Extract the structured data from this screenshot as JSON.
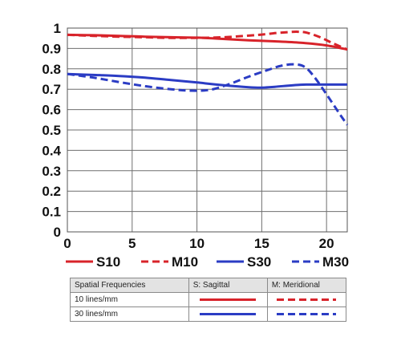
{
  "chart_data": {
    "type": "line",
    "title": "",
    "xlabel": "",
    "ylabel": "",
    "xlim": [
      0,
      21.6
    ],
    "ylim": [
      0,
      1
    ],
    "xticks": [
      0,
      5,
      10,
      15,
      20
    ],
    "yticks": [
      {
        "value": 0,
        "label": "0"
      },
      {
        "value": 0.1,
        "label": "0.1"
      },
      {
        "value": 0.2,
        "label": "0.2"
      },
      {
        "value": 0.3,
        "label": "0.3"
      },
      {
        "value": 0.4,
        "label": "0.4"
      },
      {
        "value": 0.5,
        "label": "0.5"
      },
      {
        "value": 0.6,
        "label": "0.6"
      },
      {
        "value": 0.7,
        "label": "0.7"
      },
      {
        "value": 0.8,
        "label": "0.8"
      },
      {
        "value": 0.9,
        "label": "0.9"
      },
      {
        "value": 1,
        "label": "1"
      }
    ],
    "grid": true,
    "series": [
      {
        "name": "S10",
        "color": "#d8232a",
        "dash": false,
        "x": [
          0,
          2,
          4,
          6,
          8,
          10,
          12,
          14,
          16,
          18,
          20,
          21.6
        ],
        "y": [
          0.967,
          0.965,
          0.962,
          0.958,
          0.955,
          0.953,
          0.947,
          0.94,
          0.935,
          0.928,
          0.915,
          0.895
        ]
      },
      {
        "name": "M10",
        "color": "#d8232a",
        "dash": true,
        "x": [
          0,
          2,
          4,
          6,
          8,
          10,
          12,
          14,
          15,
          16,
          17,
          17.8,
          18.5,
          19.5,
          20.5,
          21.6
        ],
        "y": [
          0.967,
          0.962,
          0.958,
          0.955,
          0.952,
          0.952,
          0.955,
          0.963,
          0.968,
          0.975,
          0.98,
          0.982,
          0.977,
          0.955,
          0.925,
          0.895
        ]
      },
      {
        "name": "S30",
        "color": "#2b3cc4",
        "dash": false,
        "x": [
          0,
          2,
          4,
          6,
          8,
          10,
          12,
          14,
          15,
          16,
          18,
          20,
          21.6
        ],
        "y": [
          0.775,
          0.77,
          0.765,
          0.757,
          0.745,
          0.733,
          0.72,
          0.71,
          0.708,
          0.712,
          0.722,
          0.723,
          0.723
        ]
      },
      {
        "name": "M30",
        "color": "#2b3cc4",
        "dash": true,
        "x": [
          0,
          2,
          4,
          6,
          8,
          9.5,
          11,
          12.5,
          14,
          15.5,
          16.5,
          17.5,
          18.3,
          19,
          20,
          21,
          21.6
        ],
        "y": [
          0.775,
          0.757,
          0.735,
          0.715,
          0.7,
          0.693,
          0.697,
          0.725,
          0.762,
          0.795,
          0.815,
          0.822,
          0.81,
          0.765,
          0.675,
          0.58,
          0.525
        ]
      }
    ]
  },
  "key_table": {
    "header": [
      "Spatial Frequencies",
      "S: Sagittal",
      "M: Meridional"
    ],
    "rows": [
      {
        "label": "10 lines/mm",
        "color": "#d8232a"
      },
      {
        "label": "30 lines/mm",
        "color": "#2b3cc4"
      }
    ]
  }
}
